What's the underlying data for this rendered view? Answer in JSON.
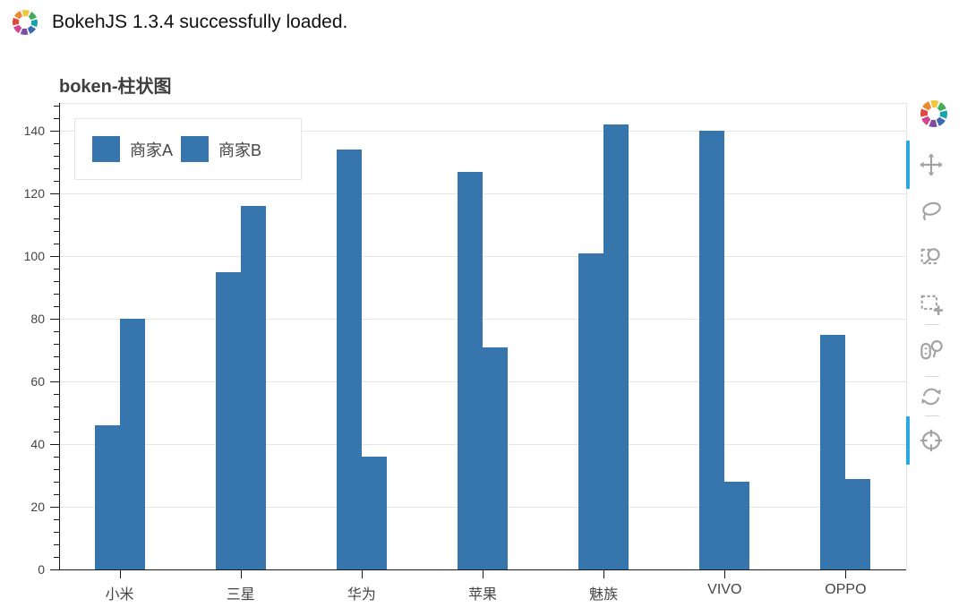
{
  "header": {
    "message": "BokehJS 1.3.4 successfully loaded.",
    "logo_icon": "bokeh-logo"
  },
  "chart_data": {
    "type": "bar",
    "title": "boken-柱状图",
    "categories": [
      "小米",
      "三星",
      "华为",
      "苹果",
      "魅族",
      "VIVO",
      "OPPO"
    ],
    "series": [
      {
        "name": "商家A",
        "color": "#3776ad",
        "values": [
          46,
          95,
          134,
          127,
          101,
          140,
          75
        ]
      },
      {
        "name": "商家B",
        "color": "#3776ad",
        "values": [
          80,
          116,
          36,
          71,
          142,
          28,
          29
        ]
      }
    ],
    "xlabel": "",
    "ylabel": "",
    "ylim": [
      0,
      149
    ],
    "yticks": [
      0,
      20,
      40,
      60,
      80,
      100,
      120,
      140
    ],
    "y_minor_tick_step": 4,
    "grid": true,
    "legend_position": "top_left"
  },
  "toolbar": {
    "accent_color": "#26aae1",
    "icon_color": "#a3a3a3",
    "tools": [
      {
        "name": "pan",
        "active": true
      },
      {
        "name": "lasso-select",
        "active": false
      },
      {
        "name": "box-zoom",
        "active": false
      },
      {
        "name": "box-select",
        "active": false
      },
      {
        "name": "wheel-zoom",
        "active": false
      },
      {
        "name": "reset",
        "active": false
      },
      {
        "name": "crosshair",
        "active": true
      }
    ]
  }
}
